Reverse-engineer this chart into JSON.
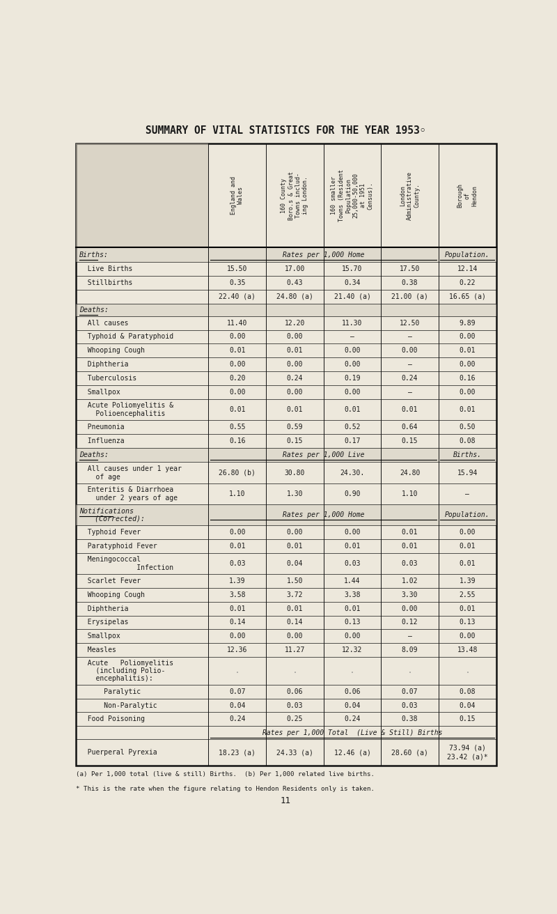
{
  "title": "SUMMARY OF VITAL STATISTICS FOR THE YEAR 1953◦",
  "bg_color": "#ede8dc",
  "text_color": "#1a1a1a",
  "col_headers": [
    "England and\nWales",
    "160 County\nBoro.s & Great\nTowns includ-\ning London.",
    "160 smaller\nTowns (Resident\nPopulation\n25,000-50,000\nat 1951\nCensus).",
    "London\nAdministrative\nCounty.",
    "Borough\nof\nHendon"
  ],
  "rows": [
    {
      "label": "Births:",
      "type": "section_rates",
      "span_text": "Rates per 1,000 Home",
      "span_last": "Population.",
      "cols": [
        "",
        "",
        "",
        "",
        ""
      ]
    },
    {
      "label": "  Live Births",
      "type": "data",
      "cols": [
        "15.50",
        "17.00",
        "15.70",
        "17.50",
        "12.14"
      ]
    },
    {
      "label": "  Stillbirths",
      "type": "data",
      "cols": [
        "0.35",
        "0.43",
        "0.34",
        "0.38",
        "0.22"
      ]
    },
    {
      "label": "",
      "type": "data",
      "cols": [
        "22.40 (a)",
        "24.80 (a)",
        "21.40 (a)",
        "21.00 (a)",
        "16.65 (a)"
      ]
    },
    {
      "label": "Deaths:",
      "type": "section_header",
      "cols": [
        "",
        "",
        "",
        "",
        ""
      ]
    },
    {
      "label": "  All causes",
      "type": "data",
      "cols": [
        "11.40",
        "12.20",
        "11.30",
        "12.50",
        "9.89"
      ]
    },
    {
      "label": "  Typhoid & Paratyphoid",
      "type": "data",
      "cols": [
        "0.00",
        "0.00",
        "—",
        "—",
        "0.00"
      ]
    },
    {
      "label": "  Whooping Cough",
      "type": "data",
      "cols": [
        "0.01",
        "0.01",
        "0.00",
        "0.00",
        "0.01"
      ]
    },
    {
      "label": "  Diphtheria",
      "type": "data",
      "cols": [
        "0.00",
        "0.00",
        "0.00",
        "—",
        "0.00"
      ]
    },
    {
      "label": "  Tuberculosis",
      "type": "data",
      "cols": [
        "0.20",
        "0.24",
        "0.19",
        "0.24",
        "0.16"
      ]
    },
    {
      "label": "  Smallpox",
      "type": "data",
      "cols": [
        "0.00",
        "0.00",
        "0.00",
        "—",
        "0.00"
      ]
    },
    {
      "label": "  Acute Poliomyelitis &\n    Polioencephalitis",
      "type": "data2",
      "cols": [
        "0.01",
        "0.01",
        "0.01",
        "0.01",
        "0.01"
      ]
    },
    {
      "label": "  Pneumonia",
      "type": "data",
      "cols": [
        "0.55",
        "0.59",
        "0.52",
        "0.64",
        "0.50"
      ]
    },
    {
      "label": "  Influenza",
      "type": "data",
      "cols": [
        "0.16",
        "0.15",
        "0.17",
        "0.15",
        "0.08"
      ]
    },
    {
      "label": "Deaths:",
      "type": "section_rates2",
      "span_text": "Rates per 1,000 Live",
      "span_last": "Births.",
      "cols": [
        "",
        "",
        "",
        "",
        ""
      ]
    },
    {
      "label": "  All causes under 1 year\n    of age",
      "type": "data2",
      "cols": [
        "26.80 (b)",
        "30.80",
        "24.30.",
        "24.80",
        "15.94"
      ]
    },
    {
      "label": "  Enteritis & Diarrhoea\n    under 2 years of age",
      "type": "data2",
      "cols": [
        "1.10",
        "1.30",
        "0.90",
        "1.10",
        "—"
      ]
    },
    {
      "label": "Notifications\n  (Corrected):",
      "type": "section_rates3",
      "span_text": "Rates per 1,000 Home",
      "span_last": "Population.",
      "cols": [
        "",
        "",
        "",
        "",
        ""
      ]
    },
    {
      "label": "  Typhoid Fever",
      "type": "data",
      "cols": [
        "0.00",
        "0.00",
        "0.00",
        "0.01",
        "0.00"
      ]
    },
    {
      "label": "  Paratyphoid Fever",
      "type": "data",
      "cols": [
        "0.01",
        "0.01",
        "0.01",
        "0.01",
        "0.01"
      ]
    },
    {
      "label": "  Meningococcal\n              Infection",
      "type": "data2",
      "cols": [
        "0.03",
        "0.04",
        "0.03",
        "0.03",
        "0.01"
      ]
    },
    {
      "label": "  Scarlet Fever",
      "type": "data",
      "cols": [
        "1.39",
        "1.50",
        "1.44",
        "1.02",
        "1.39"
      ]
    },
    {
      "label": "  Whooping Cough",
      "type": "data",
      "cols": [
        "3.58",
        "3.72",
        "3.38",
        "3.30",
        "2.55"
      ]
    },
    {
      "label": "  Diphtheria",
      "type": "data",
      "cols": [
        "0.01",
        "0.01",
        "0.01",
        "0.00",
        "0.01"
      ]
    },
    {
      "label": "  Erysipelas",
      "type": "data",
      "cols": [
        "0.14",
        "0.14",
        "0.13",
        "0.12",
        "0.13"
      ]
    },
    {
      "label": "  Smallpox",
      "type": "data",
      "cols": [
        "0.00",
        "0.00",
        "0.00",
        "—",
        "0.00"
      ]
    },
    {
      "label": "  Measles",
      "type": "data",
      "cols": [
        "12.36",
        "11.27",
        "12.32",
        "8.09",
        "13.48"
      ]
    },
    {
      "label": "  Acute   Poliomyelitis\n    (including Polio-\n    encephalitis):",
      "type": "data3",
      "cols": [
        ".",
        ".",
        ".",
        ".",
        "."
      ]
    },
    {
      "label": "      Paralytic",
      "type": "data",
      "cols": [
        "0.07",
        "0.06",
        "0.06",
        "0.07",
        "0.08"
      ]
    },
    {
      "label": "      Non-Paralytic",
      "type": "data",
      "cols": [
        "0.04",
        "0.03",
        "0.04",
        "0.03",
        "0.04"
      ]
    },
    {
      "label": "  Food Poisoning",
      "type": "data",
      "cols": [
        "0.24",
        "0.25",
        "0.24",
        "0.38",
        "0.15"
      ]
    },
    {
      "label": "rates_total",
      "type": "span_only",
      "span_text": "Rates per 1,000 Total  (Live & Still) Births",
      "cols": [
        "",
        "",
        "",
        "",
        ""
      ]
    },
    {
      "label": "  Puerperal Pyrexia",
      "type": "data_last",
      "cols": [
        "18.23 (a)",
        "24.33 (a)",
        "12.46 (a)",
        "28.60 (a)",
        "73.94 (a)\n23.42 (a)*"
      ]
    }
  ],
  "footnote1": "(a) Per 1,000 total (live & still) Births.  (b) Per 1,000 related live births.",
  "footnote2": "* This is the rate when the figure relating to Hendon Residents only is taken.",
  "page_number": "11"
}
